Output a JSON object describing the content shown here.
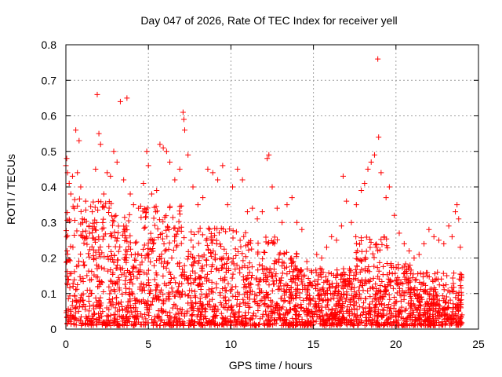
{
  "chart_data": {
    "type": "scatter",
    "title": "Day 047 of 2026, Rate Of TEC Index for receiver yell",
    "xlabel": "GPS time / hours",
    "ylabel": "ROTI / TECUs",
    "xlim": [
      0,
      25
    ],
    "ylim": [
      0,
      0.8
    ],
    "xticks": [
      0,
      5,
      10,
      15,
      20,
      25
    ],
    "xtick_labels": [
      "0",
      "5",
      "10",
      "15",
      "20",
      "25"
    ],
    "yticks": [
      0,
      0.1,
      0.2,
      0.3,
      0.4,
      0.5,
      0.6,
      0.7,
      0.8
    ],
    "ytick_labels": [
      "0",
      "0.1",
      "0.2",
      "0.3",
      "0.4",
      "0.5",
      "0.6",
      "0.7",
      "0.8"
    ],
    "grid": true,
    "marker": "+",
    "color": "#ff0000",
    "series": [
      {
        "name": "ROTI",
        "points": [
          [
            0.0,
            0.46
          ],
          [
            0.05,
            0.48
          ],
          [
            0.1,
            0.44
          ],
          [
            0.2,
            0.41
          ],
          [
            0.3,
            0.38
          ],
          [
            0.4,
            0.43
          ],
          [
            0.5,
            0.34
          ],
          [
            0.6,
            0.56
          ],
          [
            0.7,
            0.44
          ],
          [
            0.8,
            0.53
          ],
          [
            0.9,
            0.4
          ],
          [
            1.0,
            0.31
          ],
          [
            1.2,
            0.36
          ],
          [
            1.4,
            0.29
          ],
          [
            1.6,
            0.33
          ],
          [
            1.8,
            0.45
          ],
          [
            1.9,
            0.66
          ],
          [
            2.0,
            0.55
          ],
          [
            2.1,
            0.52
          ],
          [
            2.3,
            0.38
          ],
          [
            2.5,
            0.44
          ],
          [
            2.7,
            0.43
          ],
          [
            2.9,
            0.5
          ],
          [
            3.1,
            0.47
          ],
          [
            3.3,
            0.64
          ],
          [
            3.5,
            0.42
          ],
          [
            3.7,
            0.65
          ],
          [
            3.9,
            0.38
          ],
          [
            4.1,
            0.35
          ],
          [
            4.4,
            0.34
          ],
          [
            4.7,
            0.41
          ],
          [
            4.9,
            0.5
          ],
          [
            5.0,
            0.46
          ],
          [
            5.2,
            0.38
          ],
          [
            5.5,
            0.39
          ],
          [
            5.7,
            0.52
          ],
          [
            5.9,
            0.51
          ],
          [
            6.1,
            0.5
          ],
          [
            6.3,
            0.47
          ],
          [
            6.6,
            0.42
          ],
          [
            6.9,
            0.45
          ],
          [
            7.1,
            0.61
          ],
          [
            7.15,
            0.59
          ],
          [
            7.2,
            0.56
          ],
          [
            7.4,
            0.49
          ],
          [
            7.7,
            0.4
          ],
          [
            8.0,
            0.35
          ],
          [
            8.3,
            0.37
          ],
          [
            8.6,
            0.45
          ],
          [
            8.9,
            0.44
          ],
          [
            9.2,
            0.42
          ],
          [
            9.5,
            0.46
          ],
          [
            9.8,
            0.35
          ],
          [
            10.1,
            0.4
          ],
          [
            10.4,
            0.45
          ],
          [
            10.7,
            0.42
          ],
          [
            11.0,
            0.33
          ],
          [
            11.3,
            0.34
          ],
          [
            11.6,
            0.31
          ],
          [
            11.9,
            0.33
          ],
          [
            12.2,
            0.48
          ],
          [
            12.3,
            0.49
          ],
          [
            12.5,
            0.4
          ],
          [
            12.8,
            0.34
          ],
          [
            13.1,
            0.3
          ],
          [
            13.4,
            0.35
          ],
          [
            13.7,
            0.37
          ],
          [
            14.0,
            0.3
          ],
          [
            14.3,
            0.28
          ],
          [
            14.6,
            0.19
          ],
          [
            14.9,
            0.16
          ],
          [
            15.2,
            0.21
          ],
          [
            15.5,
            0.2
          ],
          [
            15.8,
            0.23
          ],
          [
            16.1,
            0.26
          ],
          [
            16.4,
            0.25
          ],
          [
            16.7,
            0.29
          ],
          [
            16.8,
            0.43
          ],
          [
            17.0,
            0.36
          ],
          [
            17.3,
            0.3
          ],
          [
            17.6,
            0.35
          ],
          [
            17.9,
            0.39
          ],
          [
            18.1,
            0.41
          ],
          [
            18.3,
            0.45
          ],
          [
            18.5,
            0.47
          ],
          [
            18.7,
            0.49
          ],
          [
            18.9,
            0.76
          ],
          [
            18.95,
            0.54
          ],
          [
            19.1,
            0.44
          ],
          [
            19.4,
            0.37
          ],
          [
            19.6,
            0.4
          ],
          [
            19.9,
            0.32
          ],
          [
            20.2,
            0.27
          ],
          [
            20.5,
            0.24
          ],
          [
            20.8,
            0.22
          ],
          [
            21.1,
            0.2
          ],
          [
            21.4,
            0.21
          ],
          [
            21.7,
            0.24
          ],
          [
            22.0,
            0.28
          ],
          [
            22.3,
            0.26
          ],
          [
            22.6,
            0.25
          ],
          [
            22.9,
            0.24
          ],
          [
            23.2,
            0.29
          ],
          [
            23.4,
            0.26
          ],
          [
            23.6,
            0.33
          ],
          [
            23.7,
            0.35
          ],
          [
            23.8,
            0.31
          ],
          [
            23.9,
            0.23
          ],
          [
            24.0,
            0.04
          ],
          [
            0.3,
            0.05
          ],
          [
            1.0,
            0.08
          ],
          [
            2.0,
            0.12
          ],
          [
            3.0,
            0.06
          ],
          [
            4.0,
            0.1
          ],
          [
            5.0,
            0.2
          ],
          [
            6.0,
            0.22
          ],
          [
            7.0,
            0.15
          ],
          [
            8.0,
            0.04
          ],
          [
            9.0,
            0.05
          ],
          [
            10.0,
            0.06
          ],
          [
            11.0,
            0.09
          ],
          [
            12.0,
            0.07
          ],
          [
            13.0,
            0.03
          ],
          [
            14.0,
            0.05
          ],
          [
            15.0,
            0.02
          ],
          [
            16.0,
            0.03
          ],
          [
            17.0,
            0.05
          ],
          [
            18.0,
            0.06
          ],
          [
            19.0,
            0.07
          ],
          [
            20.0,
            0.05
          ],
          [
            21.0,
            0.04
          ],
          [
            22.0,
            0.03
          ],
          [
            23.0,
            0.04
          ]
        ]
      }
    ]
  }
}
